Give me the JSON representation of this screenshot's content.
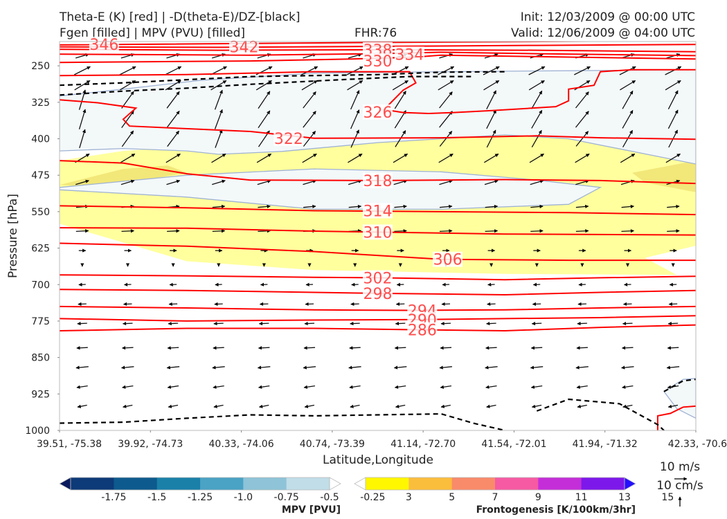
{
  "header": {
    "title_left_1": "Theta-E (K) [red] | -D(theta-E)/DZ-[black]",
    "title_left_2": "Fgen [filled] | MPV (PVU) [filled]",
    "fhr": "FHR:76",
    "init": "Init: 12/03/2009 @ 00:00 UTC",
    "valid": "Valid: 12/06/2009 @ 04:00 UTC"
  },
  "colors": {
    "theta_e": "#ff0000",
    "theta_e_label": "#ff4d4d",
    "dthetae_dz": "#000000",
    "mpv_light": "#f3f8f9",
    "mpv_edge": "#9fb2d4",
    "fgen_3_5": "#ffff9e",
    "fgen_5_7": "#f2e779"
  },
  "chart_data": {
    "type": "cross-section",
    "xlabel": "Latitude,Longitude",
    "ylabel": "Pressure [hPa]",
    "x_ticks": [
      "39.51, -75.38",
      "39.92, -74.73",
      "40.33, -74.06",
      "40.74, -73.39",
      "41.14, -72.70",
      "41.54, -72.01",
      "41.94, -71.32",
      "42.33, -70.6"
    ],
    "y_ticks": [
      250,
      325,
      400,
      475,
      550,
      625,
      700,
      775,
      850,
      925,
      1000
    ],
    "ylim": [
      200,
      1000
    ],
    "theta_e_contours": [
      {
        "label": "346",
        "points": [
          [
            0,
            207
          ],
          [
            0.5,
            202
          ],
          [
            1,
            198
          ]
        ],
        "label_pos": [
          0.07,
          206
        ]
      },
      {
        "label": "342",
        "points": [
          [
            0,
            211
          ],
          [
            0.25,
            212
          ],
          [
            0.5,
            210
          ],
          [
            0.75,
            208
          ],
          [
            1,
            206
          ]
        ],
        "label_pos": [
          0.29,
          211
        ]
      },
      {
        "label": "338",
        "points": [
          [
            0,
            216
          ],
          [
            0.25,
            218
          ],
          [
            0.5,
            217
          ],
          [
            0.75,
            218
          ],
          [
            1,
            221
          ]
        ],
        "label_pos": [
          0.5,
          217
        ]
      },
      {
        "label": "334",
        "points": [
          [
            0,
            226
          ],
          [
            0.3,
            228
          ],
          [
            0.5,
            225
          ],
          [
            0.6,
            222
          ],
          [
            0.75,
            225
          ],
          [
            1,
            229
          ]
        ],
        "label_pos": [
          0.55,
          226
        ]
      },
      {
        "label": "330",
        "points": [
          [
            0,
            243
          ],
          [
            0.3,
            240
          ],
          [
            0.46,
            236
          ],
          [
            0.56,
            232
          ],
          [
            0.6,
            228
          ],
          [
            0.8,
            232
          ],
          [
            1,
            236
          ]
        ],
        "label_pos": [
          0.5,
          240
        ]
      },
      {
        "label": "326",
        "points": [
          [
            0,
            270
          ],
          [
            0.2,
            268
          ],
          [
            0.4,
            262
          ],
          [
            0.55,
            262
          ],
          [
            0.56,
            285
          ],
          [
            0.54,
            300
          ],
          [
            0.51,
            340
          ],
          [
            0.54,
            346
          ],
          [
            0.58,
            348
          ],
          [
            0.62,
            346
          ],
          [
            0.68,
            342
          ],
          [
            0.78,
            334
          ],
          [
            0.8,
            322
          ],
          [
            0.8,
            298
          ],
          [
            0.84,
            290
          ],
          [
            0.85,
            262
          ],
          [
            0.9,
            258
          ],
          [
            1,
            258
          ]
        ],
        "label_pos": [
          0.5,
          345
        ]
      },
      {
        "label": "322",
        "points": [
          [
            0,
            320
          ],
          [
            0.06,
            326
          ],
          [
            0.12,
            337
          ],
          [
            0.1,
            360
          ],
          [
            0.11,
            374
          ],
          [
            0.3,
            385
          ],
          [
            0.4,
            399
          ],
          [
            0.6,
            398
          ],
          [
            0.75,
            394
          ],
          [
            0.85,
            398
          ],
          [
            1,
            401
          ]
        ],
        "label_pos": [
          0.36,
          399
        ]
      },
      {
        "label": "318",
        "points": [
          [
            0,
            445
          ],
          [
            0.1,
            450
          ],
          [
            0.2,
            472
          ],
          [
            0.3,
            485
          ],
          [
            0.5,
            486
          ],
          [
            0.7,
            484
          ],
          [
            0.85,
            486
          ],
          [
            1,
            492
          ]
        ],
        "label_pos": [
          0.5,
          486
        ]
      },
      {
        "label": "314",
        "points": [
          [
            0,
            538
          ],
          [
            0.2,
            542
          ],
          [
            0.4,
            548
          ],
          [
            0.6,
            550
          ],
          [
            0.8,
            552
          ],
          [
            1,
            556
          ]
        ],
        "label_pos": [
          0.5,
          548
        ]
      },
      {
        "label": "310",
        "points": [
          [
            0,
            583
          ],
          [
            0.2,
            584
          ],
          [
            0.4,
            590
          ],
          [
            0.5,
            592
          ],
          [
            0.7,
            596
          ],
          [
            1,
            598
          ]
        ],
        "label_pos": [
          0.5,
          592
        ]
      },
      {
        "label": "306",
        "points": [
          [
            0,
            615
          ],
          [
            0.2,
            621
          ],
          [
            0.4,
            632
          ],
          [
            0.6,
            648
          ],
          [
            0.8,
            650
          ],
          [
            1,
            650
          ]
        ],
        "label_pos": [
          0.61,
          648
        ]
      },
      {
        "label": "302",
        "points": [
          [
            0,
            680
          ],
          [
            0.2,
            682
          ],
          [
            0.4,
            685
          ],
          [
            0.5,
            686
          ],
          [
            0.7,
            690
          ],
          [
            0.85,
            686
          ],
          [
            1,
            683
          ]
        ],
        "label_pos": [
          0.5,
          686
        ]
      },
      {
        "label": "298",
        "points": [
          [
            0,
            710
          ],
          [
            0.2,
            712
          ],
          [
            0.4,
            716
          ],
          [
            0.5,
            718
          ],
          [
            0.7,
            721
          ],
          [
            0.85,
            716
          ],
          [
            1,
            712
          ]
        ],
        "label_pos": [
          0.5,
          718
        ]
      },
      {
        "label": "294",
        "points": [
          [
            0,
            745
          ],
          [
            0.2,
            748
          ],
          [
            0.4,
            752
          ],
          [
            0.55,
            753
          ],
          [
            0.7,
            752
          ],
          [
            0.85,
            748
          ],
          [
            1,
            745
          ]
        ],
        "label_pos": [
          0.57,
          753
        ]
      },
      {
        "label": "290",
        "points": [
          [
            0,
            770
          ],
          [
            0.2,
            775
          ],
          [
            0.4,
            773
          ],
          [
            0.57,
            772
          ],
          [
            0.7,
            770
          ],
          [
            0.85,
            768
          ],
          [
            1,
            764
          ]
        ],
        "label_pos": [
          0.57,
          772
        ]
      },
      {
        "label": "286",
        "points": [
          [
            0,
            795
          ],
          [
            0.2,
            790
          ],
          [
            0.4,
            790
          ],
          [
            0.57,
            793
          ],
          [
            0.7,
            795
          ],
          [
            0.85,
            788
          ],
          [
            1,
            783
          ]
        ],
        "label_pos": [
          0.57,
          793
        ]
      }
    ],
    "extra_red": [
      [
        [
          0.94,
          1000
        ],
        [
          0.94,
          970
        ],
        [
          0.96,
          965
        ],
        [
          0.98,
          952
        ],
        [
          1,
          950
        ]
      ]
    ],
    "dashed_black": [
      [
        [
          0,
          290
        ],
        [
          0.1,
          285
        ],
        [
          0.3,
          272
        ],
        [
          0.5,
          268
        ],
        [
          0.6,
          263
        ],
        [
          0.7,
          262
        ]
      ],
      [
        [
          0,
          310
        ],
        [
          0.1,
          302
        ],
        [
          0.2,
          296
        ],
        [
          0.3,
          288
        ],
        [
          0.45,
          278
        ],
        [
          0.55,
          272
        ],
        [
          0.65,
          272
        ]
      ],
      [
        [
          0,
          985
        ],
        [
          0.1,
          983
        ],
        [
          0.2,
          975
        ],
        [
          0.3,
          968
        ],
        [
          0.4,
          970
        ],
        [
          0.5,
          968
        ],
        [
          0.6,
          966
        ],
        [
          0.65,
          985
        ],
        [
          0.7,
          1000
        ]
      ],
      [
        [
          0.75,
          960
        ],
        [
          0.8,
          936
        ],
        [
          0.88,
          945
        ],
        [
          0.94,
          988
        ],
        [
          0.95,
          1000
        ]
      ],
      [
        [
          0.95,
          920
        ],
        [
          0.98,
          898
        ],
        [
          1,
          895
        ]
      ]
    ],
    "fgen_bands": [
      {
        "value": 3,
        "points": [
          [
            0,
            445
          ],
          [
            0.1,
            425
          ],
          [
            0.3,
            408
          ],
          [
            0.5,
            395
          ],
          [
            0.7,
            392
          ],
          [
            0.85,
            402
          ],
          [
            1,
            425
          ],
          [
            1,
            620
          ],
          [
            0.92,
            645
          ],
          [
            0.97,
            680
          ],
          [
            0.7,
            678
          ],
          [
            0.4,
            670
          ],
          [
            0.2,
            652
          ],
          [
            0,
            575
          ]
        ]
      },
      {
        "value": 5,
        "points": [
          [
            0,
            495
          ],
          [
            0.1,
            462
          ],
          [
            0.17,
            455
          ],
          [
            0.2,
            470
          ],
          [
            0.12,
            488
          ],
          [
            0.04,
            498
          ]
        ]
      },
      {
        "value": 5,
        "points": [
          [
            0.9,
            470
          ],
          [
            1,
            445
          ],
          [
            1,
            510
          ],
          [
            0.92,
            490
          ]
        ]
      }
    ],
    "mpv_regions": [
      {
        "value": -0.25,
        "points": [
          [
            0,
            312
          ],
          [
            0.1,
            298
          ],
          [
            0.22,
            280
          ],
          [
            0.4,
            265
          ],
          [
            0.6,
            262
          ],
          [
            0.8,
            260
          ],
          [
            1,
            258
          ],
          [
            1,
            452
          ],
          [
            0.8,
            400
          ],
          [
            0.7,
            392
          ],
          [
            0.5,
            408
          ],
          [
            0.35,
            426
          ],
          [
            0.25,
            432
          ],
          [
            0.2,
            425
          ],
          [
            0.1,
            420
          ],
          [
            0,
            425
          ]
        ]
      },
      {
        "value": -0.25,
        "points": [
          [
            0,
            500
          ],
          [
            0.2,
            475
          ],
          [
            0.4,
            462
          ],
          [
            0.6,
            468
          ],
          [
            0.75,
            485
          ],
          [
            0.85,
            500
          ],
          [
            0.8,
            535
          ],
          [
            0.6,
            545
          ],
          [
            0.4,
            545
          ],
          [
            0.2,
            520
          ],
          [
            0,
            505
          ]
        ]
      },
      {
        "value": -0.25,
        "points": [
          [
            0.95,
            920
          ],
          [
            0.98,
            895
          ],
          [
            1,
            893
          ],
          [
            1,
            975
          ],
          [
            0.97,
            955
          ]
        ]
      }
    ],
    "mpv_colorbar": {
      "title": "MPV [PVU]",
      "levels": [
        "-1.75",
        "-1.5",
        "-1.25",
        "-1.0",
        "-0.75",
        "-0.5",
        "-0.25"
      ],
      "colors": [
        "#0a1a5e",
        "#0d3a78",
        "#0d5a8e",
        "#1a80a8",
        "#4aa2c4",
        "#8ec3d8",
        "#c0dde8",
        "#ffffff"
      ]
    },
    "fgen_colorbar": {
      "title": "Frontogenesis [K/100km/3hr]",
      "levels": [
        "3",
        "5",
        "7",
        "9",
        "11",
        "13",
        "15"
      ],
      "colors": [
        "#ffffff",
        "#fff700",
        "#fbbd3c",
        "#f98a6a",
        "#f55aa2",
        "#c42ed8",
        "#7d18ea",
        "#2410ff"
      ]
    },
    "reference_vectors": {
      "horizontal": "10 m/s",
      "vertical": "10 cm/s"
    }
  }
}
